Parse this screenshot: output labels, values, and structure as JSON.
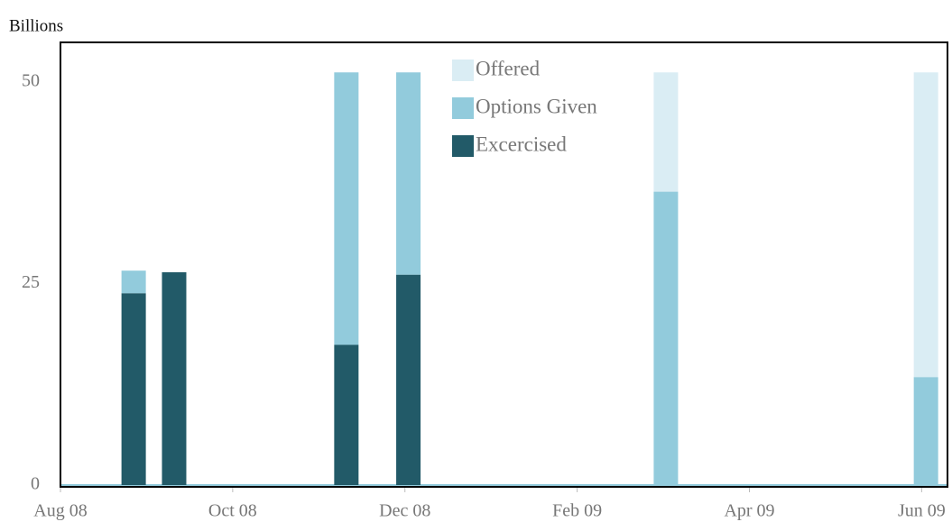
{
  "chart_data": {
    "type": "stacked_bar",
    "y_label": "Billions",
    "x": [
      0.85,
      1.32,
      3.32,
      4.04,
      7.03,
      10.05
    ],
    "xlim": [
      0,
      10.3
    ],
    "xticks": [
      {
        "value": 0,
        "label": "Aug 08"
      },
      {
        "value": 2,
        "label": "Oct 08"
      },
      {
        "value": 4,
        "label": "Dec 08"
      },
      {
        "value": 6,
        "label": "Feb 09"
      },
      {
        "value": 8,
        "label": "Apr 09"
      },
      {
        "value": 10,
        "label": "Jun 09"
      }
    ],
    "ylim": [
      0,
      55
    ],
    "yticks": [
      0,
      25,
      50
    ],
    "series": [
      {
        "name": "Excercised",
        "color": "#225a68",
        "values": [
          23.8,
          26.4,
          17.4,
          26.1,
          0,
          0
        ]
      },
      {
        "name": "Options Given",
        "color": "#92cbdc",
        "values": [
          2.8,
          0,
          33.8,
          25.1,
          36.4,
          13.4
        ]
      },
      {
        "name": "Offered",
        "color": "#daedf4",
        "values": [
          0,
          0,
          0,
          0,
          14.8,
          37.8
        ]
      }
    ],
    "legend": "top"
  }
}
